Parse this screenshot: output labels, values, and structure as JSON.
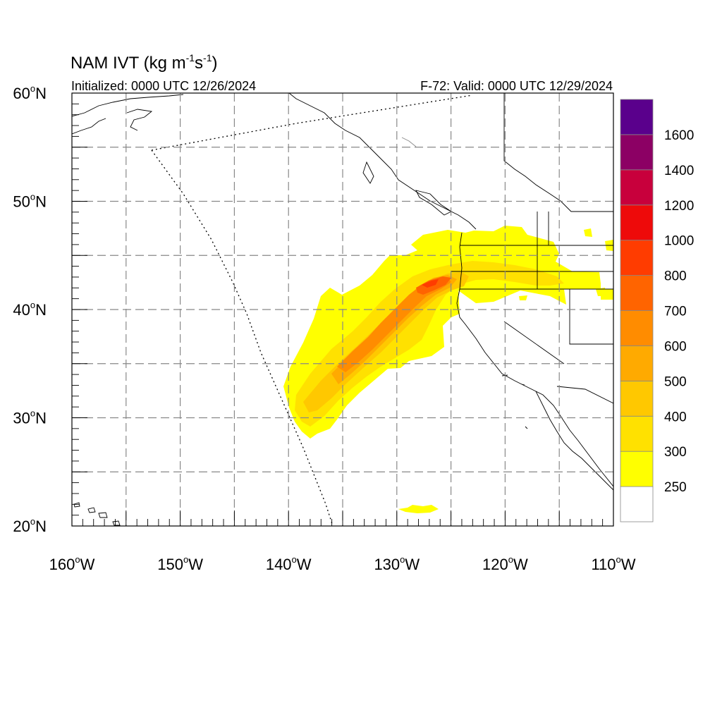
{
  "header": {
    "title": "NAM IVT (kg m",
    "title_unit_exp1": "-1",
    "title_mid": "s",
    "title_unit_exp2": "-1",
    "title_close": ")",
    "initialized": "Initialized: 0000 UTC 12/26/2024",
    "valid": "F-72: Valid: 0000 UTC 12/29/2024"
  },
  "axes": {
    "lat_labels": [
      {
        "num": "60",
        "hemi": "N",
        "value": 60
      },
      {
        "num": "50",
        "hemi": "N",
        "value": 50
      },
      {
        "num": "40",
        "hemi": "N",
        "value": 40
      },
      {
        "num": "30",
        "hemi": "N",
        "value": 30
      },
      {
        "num": "20",
        "hemi": "N",
        "value": 20
      }
    ],
    "lon_labels": [
      {
        "num": "160",
        "hemi": "W",
        "value": -160
      },
      {
        "num": "150",
        "hemi": "W",
        "value": -150
      },
      {
        "num": "140",
        "hemi": "W",
        "value": -140
      },
      {
        "num": "130",
        "hemi": "W",
        "value": -130
      },
      {
        "num": "120",
        "hemi": "W",
        "value": -120
      },
      {
        "num": "110",
        "hemi": "W",
        "value": -110
      }
    ],
    "lon_range": [
      -160,
      -110
    ],
    "lat_range": [
      20,
      60
    ],
    "grid": "dashed every 5 degrees"
  },
  "colorbar": {
    "levels": [
      "250",
      "300",
      "400",
      "500",
      "600",
      "700",
      "800",
      "1000",
      "1200",
      "1400",
      "1600"
    ],
    "colors": [
      "#ffffff",
      "#ffff00",
      "#ffe100",
      "#ffc800",
      "#ffaa00",
      "#ff8c00",
      "#ff6400",
      "#ff3c00",
      "#ee0a0a",
      "#c8003c",
      "#8c0064",
      "#5a008c"
    ]
  }
}
